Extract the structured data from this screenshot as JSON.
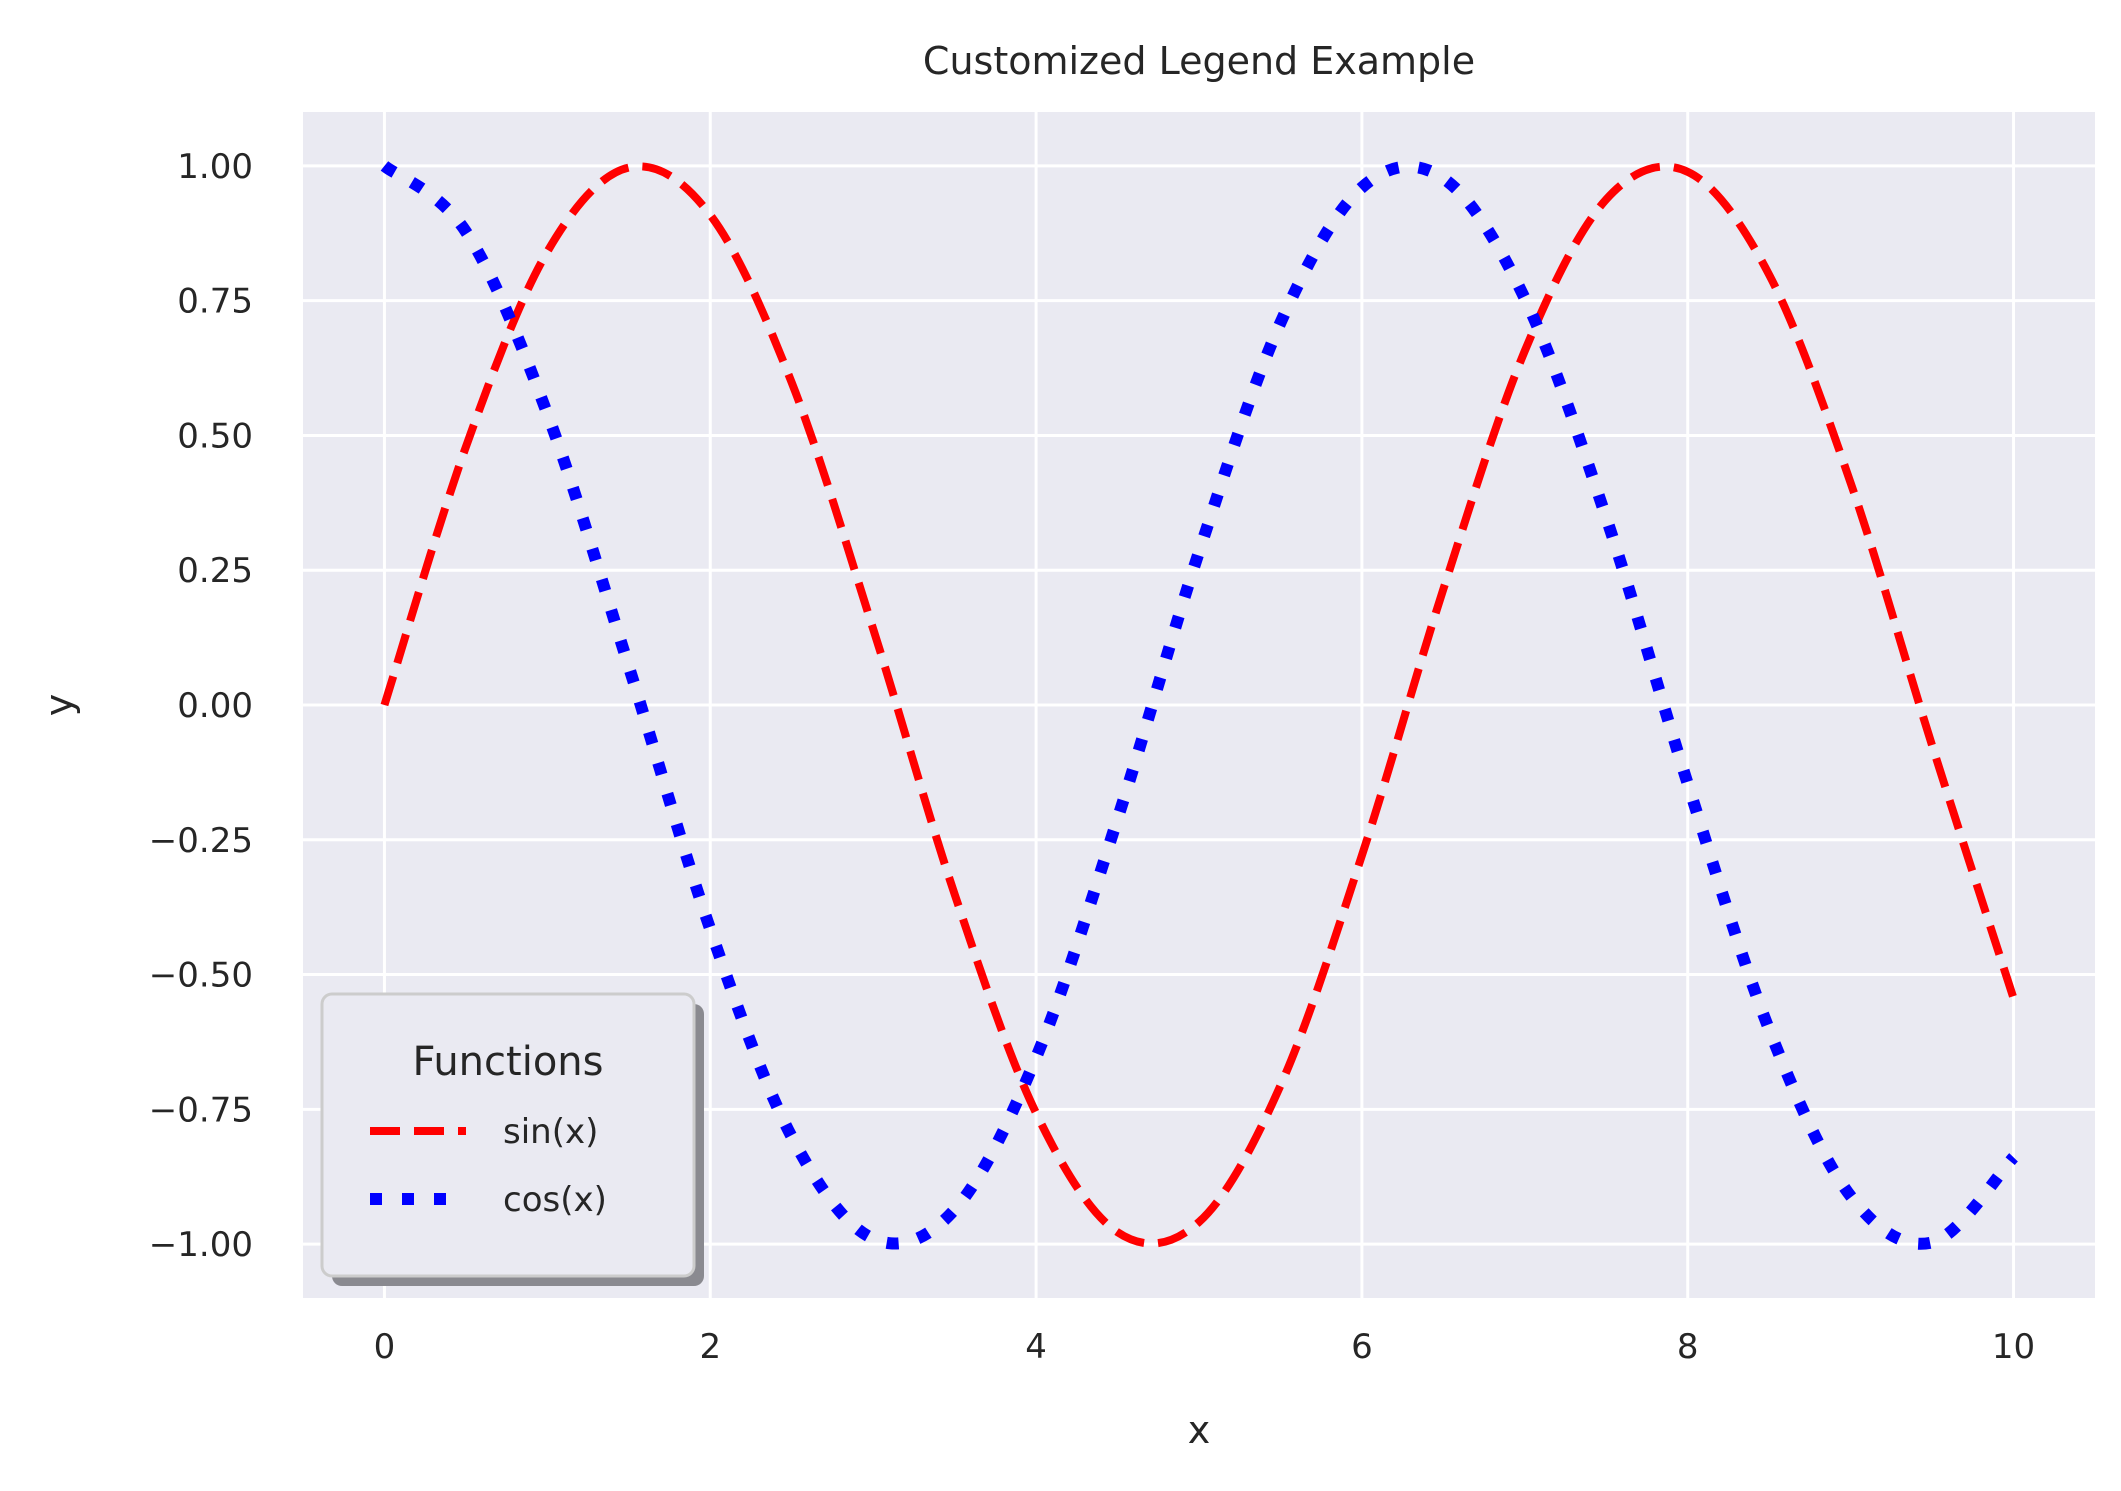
{
  "chart_data": {
    "type": "line",
    "title": "Customized Legend Example",
    "xlabel": "x",
    "ylabel": "y",
    "xlim": [
      -0.5,
      10.5
    ],
    "ylim": [
      -1.1,
      1.1
    ],
    "xticks": [
      0,
      2,
      4,
      6,
      8,
      10
    ],
    "xtick_labels": [
      "0",
      "2",
      "4",
      "6",
      "8",
      "10"
    ],
    "yticks": [
      1.0,
      0.75,
      0.5,
      0.25,
      0.0,
      -0.25,
      -0.5,
      -0.75,
      -1.0
    ],
    "ytick_labels": [
      "1.00",
      "0.75",
      "0.50",
      "0.25",
      "0.00",
      "−0.25",
      "−0.50",
      "−0.75",
      "−1.00"
    ],
    "grid": true,
    "legend": {
      "title": "Functions",
      "placement": "lower-left",
      "shadow": true
    },
    "x": [
      0.0,
      0.5,
      1.0,
      1.5,
      2.0,
      2.5,
      3.0,
      3.5,
      4.0,
      4.5,
      5.0,
      5.5,
      6.0,
      6.5,
      7.0,
      7.5,
      8.0,
      8.5,
      9.0,
      9.5,
      10.0
    ],
    "series": [
      {
        "name": "sin(x)",
        "color": "#ff0000",
        "style": "dashed",
        "values": [
          0.0,
          0.479,
          0.841,
          0.997,
          0.909,
          0.598,
          0.141,
          -0.351,
          -0.757,
          -0.978,
          -0.959,
          -0.706,
          -0.279,
          0.215,
          0.657,
          0.938,
          0.989,
          0.798,
          0.412,
          -0.075,
          -0.544
        ]
      },
      {
        "name": "cos(x)",
        "color": "#0000ff",
        "style": "dotted",
        "values": [
          1.0,
          0.878,
          0.54,
          0.071,
          -0.416,
          -0.801,
          -0.99,
          -0.936,
          -0.654,
          -0.211,
          0.284,
          0.709,
          0.96,
          0.977,
          0.754,
          0.347,
          -0.146,
          -0.602,
          -0.911,
          -0.997,
          -0.839
        ]
      }
    ]
  }
}
